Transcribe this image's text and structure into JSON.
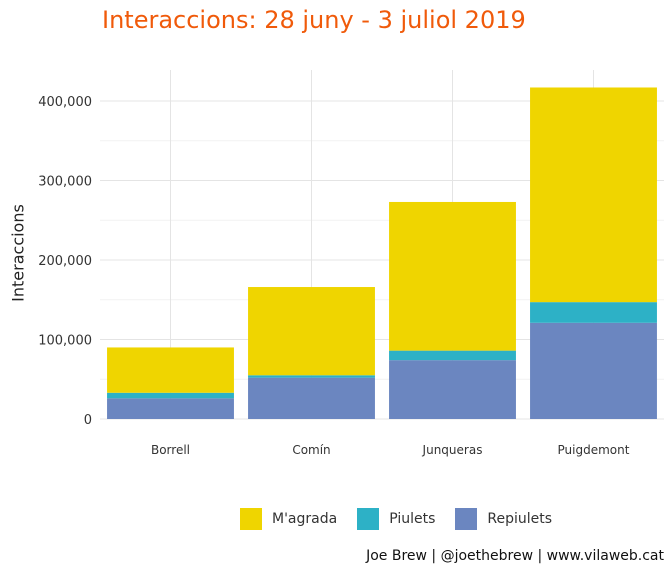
{
  "chart_data": {
    "type": "bar",
    "stacked": true,
    "title": "Interaccions: 28 juny - 3 juliol 2019",
    "xlabel": "",
    "ylabel": "Interaccions",
    "categories": [
      "Borrell",
      "Comín",
      "Junqueras",
      "Puigdemont"
    ],
    "series": [
      {
        "name": "Repiulets",
        "color": "#6b86c0",
        "values": [
          26000,
          52000,
          74000,
          121000
        ]
      },
      {
        "name": "Piulets",
        "color": "#2db1c6",
        "values": [
          7000,
          3000,
          12000,
          26000
        ]
      },
      {
        "name": "M'agrada",
        "color": "#efd500",
        "values": [
          57000,
          111000,
          187000,
          270000
        ]
      }
    ],
    "legend_order": [
      "M'agrada",
      "Piulets",
      "Repiulets"
    ],
    "ylim": [
      0,
      440000
    ],
    "yticks": [
      0,
      100000,
      200000,
      300000,
      400000
    ],
    "ytick_labels": [
      "0",
      "100,000",
      "200,000",
      "300,000",
      "400,000"
    ],
    "grid": true,
    "legend_position": "bottom",
    "caption": "Joe Brew | @joethebrew | www.vilaweb.cat",
    "title_color": "#f05a0a"
  }
}
